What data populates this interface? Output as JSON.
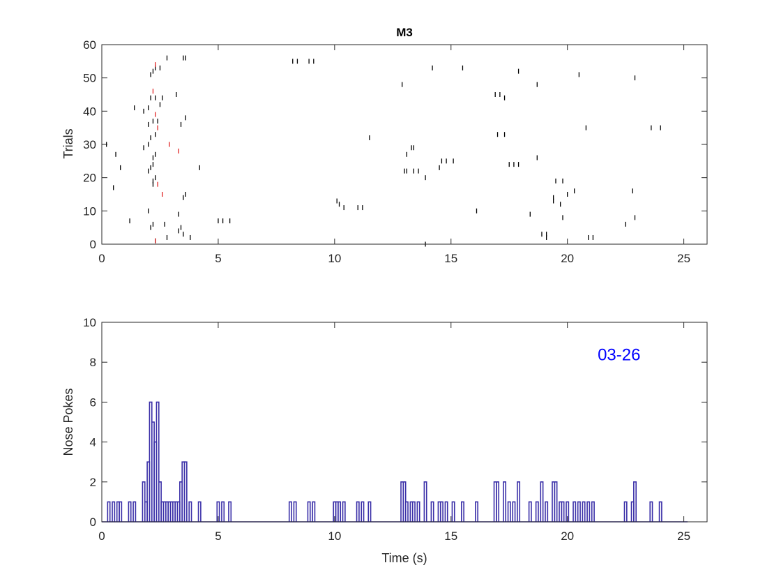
{
  "chart_data": [
    {
      "type": "raster",
      "title": "M3",
      "xlabel": "",
      "ylabel": "Trials",
      "xlim": [
        0,
        26
      ],
      "ylim": [
        0,
        60
      ],
      "xticks": [
        0,
        5,
        10,
        15,
        20,
        25
      ],
      "yticks": [
        0,
        10,
        20,
        30,
        40,
        50,
        60
      ],
      "grid": false,
      "colors": {
        "ticks": "#000000",
        "highlight": "#e02020"
      },
      "series": [
        {
          "points": [
            [
              2.3,
              1
            ],
            [
              2.8,
              2
            ],
            [
              3.5,
              3
            ],
            [
              3.8,
              2
            ],
            [
              2.1,
              5
            ],
            [
              2.2,
              6
            ],
            [
              2.7,
              6
            ],
            [
              3.3,
              4
            ],
            [
              3.4,
              5
            ],
            [
              1.2,
              7
            ],
            [
              5.0,
              7
            ],
            [
              5.2,
              7
            ],
            [
              5.5,
              7
            ],
            [
              3.3,
              9
            ],
            [
              2.0,
              10
            ],
            [
              3.5,
              14
            ],
            [
              3.6,
              15
            ],
            [
              0.5,
              17
            ],
            [
              2.2,
              18
            ],
            [
              2.2,
              19
            ],
            [
              2.3,
              20
            ],
            [
              2.0,
              22
            ],
            [
              2.1,
              23
            ],
            [
              2.2,
              24
            ],
            [
              0.8,
              23
            ],
            [
              2.2,
              26
            ],
            [
              2.3,
              27
            ],
            [
              0.6,
              27
            ],
            [
              4.2,
              23
            ],
            [
              1.8,
              29
            ],
            [
              0.2,
              30
            ],
            [
              2.0,
              30
            ],
            [
              2.1,
              32
            ],
            [
              2.3,
              33
            ],
            [
              2.0,
              36
            ],
            [
              3.4,
              36
            ],
            [
              2.2,
              37
            ],
            [
              2.4,
              37
            ],
            [
              1.8,
              40
            ],
            [
              2.0,
              41
            ],
            [
              1.4,
              41
            ],
            [
              2.5,
              42
            ],
            [
              2.6,
              44
            ],
            [
              2.1,
              44
            ],
            [
              2.3,
              44
            ],
            [
              3.6,
              38
            ],
            [
              3.2,
              45
            ],
            [
              2.1,
              51
            ],
            [
              2.2,
              52
            ],
            [
              2.3,
              53
            ],
            [
              2.5,
              53
            ],
            [
              2.8,
              56
            ],
            [
              3.5,
              56
            ],
            [
              3.6,
              56
            ],
            [
              8.2,
              55
            ],
            [
              8.4,
              55
            ],
            [
              8.9,
              55
            ],
            [
              9.1,
              55
            ],
            [
              10.1,
              13
            ],
            [
              10.2,
              12
            ],
            [
              10.4,
              11
            ],
            [
              11.0,
              11
            ],
            [
              11.2,
              11
            ],
            [
              11.5,
              32
            ],
            [
              12.9,
              48
            ],
            [
              13.0,
              22
            ],
            [
              13.1,
              22
            ],
            [
              13.1,
              27
            ],
            [
              13.3,
              29
            ],
            [
              13.4,
              29
            ],
            [
              13.4,
              22
            ],
            [
              13.6,
              22
            ],
            [
              13.9,
              20
            ],
            [
              13.9,
              0
            ],
            [
              14.2,
              53
            ],
            [
              14.5,
              23
            ],
            [
              14.6,
              25
            ],
            [
              14.8,
              25
            ],
            [
              15.1,
              25
            ],
            [
              15.5,
              53
            ],
            [
              16.1,
              10
            ],
            [
              16.9,
              45
            ],
            [
              17.1,
              45
            ],
            [
              17.0,
              33
            ],
            [
              17.3,
              33
            ],
            [
              17.3,
              44
            ],
            [
              17.5,
              24
            ],
            [
              17.7,
              24
            ],
            [
              17.9,
              24
            ],
            [
              17.9,
              52
            ],
            [
              18.4,
              9
            ],
            [
              18.7,
              26
            ],
            [
              18.7,
              48
            ],
            [
              18.9,
              3
            ],
            [
              19.1,
              2
            ],
            [
              19.1,
              3
            ],
            [
              19.4,
              13
            ],
            [
              19.4,
              14
            ],
            [
              19.5,
              19
            ],
            [
              19.7,
              12
            ],
            [
              19.8,
              8
            ],
            [
              19.8,
              19
            ],
            [
              20.0,
              15
            ],
            [
              20.3,
              16
            ],
            [
              20.5,
              51
            ],
            [
              20.8,
              35
            ],
            [
              20.9,
              2
            ],
            [
              21.1,
              2
            ],
            [
              22.5,
              6
            ],
            [
              22.8,
              16
            ],
            [
              22.9,
              8
            ],
            [
              22.9,
              50
            ],
            [
              23.6,
              35
            ],
            [
              24.0,
              35
            ]
          ]
        },
        {
          "points": [
            [
              2.3,
              54
            ],
            [
              2.2,
              46
            ],
            [
              2.3,
              39
            ],
            [
              2.4,
              35
            ],
            [
              2.4,
              18
            ],
            [
              2.6,
              15
            ],
            [
              2.9,
              30
            ],
            [
              3.3,
              28
            ],
            [
              2.3,
              1
            ]
          ]
        }
      ]
    },
    {
      "type": "bar",
      "title": "",
      "xlabel": "Time (s)",
      "ylabel": "Nose Pokes",
      "xlim": [
        0,
        26
      ],
      "ylim": [
        0,
        10
      ],
      "xticks": [
        0,
        5,
        10,
        15,
        20,
        25
      ],
      "yticks": [
        0,
        2,
        4,
        6,
        8,
        10
      ],
      "grid": false,
      "annotation": {
        "text": "03-26",
        "x": 21.3,
        "y": 8.1,
        "color": "#0000ff"
      },
      "colors": {
        "bars": "#3a2fa8"
      },
      "bar_width": 0.1,
      "x": [
        0.3,
        0.5,
        0.7,
        0.8,
        1.2,
        1.4,
        1.8,
        1.9,
        2.0,
        2.1,
        2.2,
        2.3,
        2.4,
        2.5,
        2.6,
        2.7,
        2.8,
        2.9,
        3.0,
        3.1,
        3.2,
        3.3,
        3.4,
        3.5,
        3.6,
        3.8,
        4.2,
        5.0,
        5.2,
        5.5,
        8.1,
        8.3,
        8.9,
        9.1,
        10.0,
        10.1,
        10.2,
        10.4,
        11.0,
        11.2,
        11.5,
        12.9,
        13.0,
        13.1,
        13.3,
        13.4,
        13.6,
        13.9,
        14.2,
        14.5,
        14.6,
        14.8,
        15.1,
        15.5,
        16.1,
        16.9,
        17.0,
        17.3,
        17.5,
        17.7,
        17.9,
        18.4,
        18.7,
        18.9,
        19.1,
        19.4,
        19.5,
        19.7,
        19.8,
        20.0,
        20.3,
        20.5,
        20.7,
        20.9,
        21.1,
        22.5,
        22.8,
        22.9,
        23.6,
        24.0
      ],
      "values": [
        1,
        1,
        1,
        1,
        1,
        1,
        2,
        1,
        3,
        6,
        5,
        4,
        6,
        2,
        1,
        1,
        1,
        1,
        1,
        1,
        1,
        1,
        2,
        3,
        3,
        1,
        1,
        1,
        1,
        1,
        1,
        1,
        1,
        1,
        1,
        1,
        1,
        1,
        1,
        1,
        1,
        2,
        2,
        1,
        1,
        1,
        1,
        2,
        1,
        1,
        1,
        1,
        1,
        1,
        1,
        2,
        2,
        2,
        1,
        1,
        2,
        1,
        1,
        2,
        1,
        2,
        2,
        1,
        1,
        1,
        1,
        1,
        1,
        1,
        1,
        1,
        1,
        2,
        1,
        1
      ]
    }
  ]
}
